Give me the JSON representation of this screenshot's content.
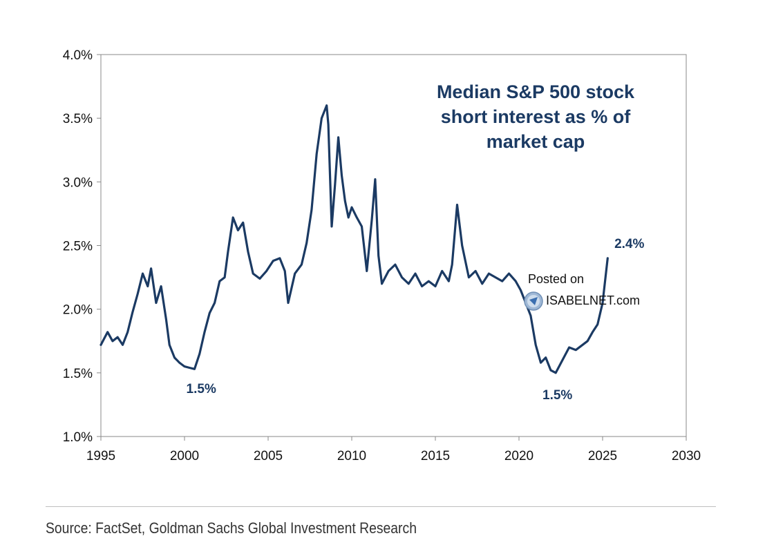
{
  "chart_data": {
    "type": "line",
    "title_lines": [
      "Median S&P 500 stock",
      "short interest as % of",
      "market cap"
    ],
    "xlabel": "",
    "ylabel": "",
    "xlim": [
      1995,
      2030
    ],
    "ylim": [
      1.0,
      4.0
    ],
    "x_ticks": [
      "1995",
      "2000",
      "2005",
      "2010",
      "2015",
      "2020",
      "2025",
      "2030"
    ],
    "y_ticks": [
      "1.0%",
      "1.5%",
      "2.0%",
      "2.5%",
      "3.0%",
      "3.5%",
      "4.0%"
    ],
    "series": [
      {
        "name": "Median short interest (% of market cap)",
        "x": [
          1995.0,
          1995.4,
          1995.7,
          1996.0,
          1996.3,
          1996.6,
          1996.9,
          1997.2,
          1997.5,
          1997.8,
          1998.0,
          1998.3,
          1998.6,
          1998.9,
          1999.1,
          1999.4,
          1999.7,
          2000.0,
          2000.3,
          2000.6,
          2000.9,
          2001.2,
          2001.5,
          2001.8,
          2002.1,
          2002.4,
          2002.6,
          2002.9,
          2003.2,
          2003.5,
          2003.8,
          2004.1,
          2004.5,
          2004.9,
          2005.3,
          2005.7,
          2006.0,
          2006.2,
          2006.6,
          2007.0,
          2007.3,
          2007.6,
          2007.9,
          2008.2,
          2008.5,
          2008.6,
          2008.8,
          2009.0,
          2009.2,
          2009.4,
          2009.6,
          2009.8,
          2010.0,
          2010.3,
          2010.6,
          2010.9,
          2011.2,
          2011.4,
          2011.6,
          2011.8,
          2012.2,
          2012.6,
          2013.0,
          2013.4,
          2013.8,
          2014.2,
          2014.6,
          2015.0,
          2015.4,
          2015.8,
          2016.0,
          2016.3,
          2016.6,
          2017.0,
          2017.4,
          2017.8,
          2018.2,
          2018.6,
          2019.0,
          2019.4,
          2019.8,
          2020.1,
          2020.4,
          2020.7,
          2021.0,
          2021.3,
          2021.6,
          2021.9,
          2022.2,
          2022.6,
          2023.0,
          2023.4,
          2023.8,
          2024.1,
          2024.4,
          2024.7,
          2025.0,
          2025.3
        ],
        "values": [
          1.72,
          1.82,
          1.75,
          1.78,
          1.72,
          1.82,
          1.98,
          2.12,
          2.28,
          2.18,
          2.32,
          2.05,
          2.18,
          1.92,
          1.72,
          1.62,
          1.58,
          1.55,
          1.54,
          1.53,
          1.65,
          1.82,
          1.97,
          2.05,
          2.22,
          2.25,
          2.45,
          2.72,
          2.62,
          2.68,
          2.45,
          2.28,
          2.24,
          2.3,
          2.38,
          2.4,
          2.3,
          2.05,
          2.28,
          2.35,
          2.52,
          2.78,
          3.22,
          3.5,
          3.6,
          3.45,
          2.65,
          2.98,
          3.35,
          3.05,
          2.85,
          2.72,
          2.8,
          2.72,
          2.65,
          2.3,
          2.7,
          3.02,
          2.42,
          2.2,
          2.3,
          2.35,
          2.25,
          2.2,
          2.28,
          2.18,
          2.22,
          2.18,
          2.3,
          2.22,
          2.35,
          2.82,
          2.5,
          2.25,
          2.3,
          2.2,
          2.28,
          2.25,
          2.22,
          2.28,
          2.22,
          2.15,
          2.05,
          1.95,
          1.72,
          1.58,
          1.62,
          1.52,
          1.5,
          1.6,
          1.7,
          1.68,
          1.72,
          1.75,
          1.82,
          1.88,
          2.05,
          2.4
        ]
      }
    ],
    "annotations": [
      {
        "label": "1.5%",
        "x": 2001.0,
        "y": 1.38
      },
      {
        "label": "1.5%",
        "x": 2022.3,
        "y": 1.33
      },
      {
        "label": "2.4%",
        "x": 2026.6,
        "y": 2.52
      }
    ],
    "colors": {
      "line": "#1b3a63",
      "title": "#1b3a63",
      "axis": "#888888"
    },
    "grid": false,
    "source": "Source: FactSet, Goldman Sachs Global Investment Research"
  },
  "watermark": {
    "line1": "Posted on",
    "line2": "ISABELNET.com",
    "icon": "globe-icon"
  }
}
